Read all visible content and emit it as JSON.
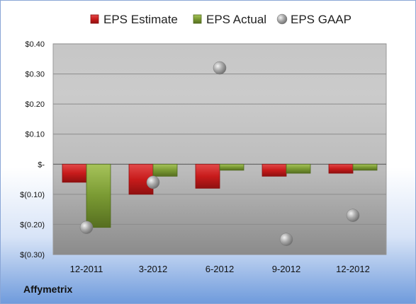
{
  "company": "Affymetrix",
  "chart_data": {
    "type": "bar",
    "categories": [
      "12-2011",
      "3-2012",
      "6-2012",
      "9-2012",
      "12-2012"
    ],
    "series": [
      {
        "name": "EPS Estimate",
        "color": "#cc1f1f",
        "values": [
          -0.06,
          -0.1,
          -0.08,
          -0.04,
          -0.03
        ]
      },
      {
        "name": "EPS Actual",
        "color": "#7a9a33",
        "values": [
          -0.21,
          -0.04,
          -0.02,
          -0.03,
          -0.02
        ]
      }
    ],
    "markers": [
      {
        "name": "EPS GAAP",
        "type": "scatter",
        "values": [
          -0.21,
          -0.06,
          0.32,
          -0.25,
          -0.17
        ]
      }
    ],
    "ylim": [
      -0.3,
      0.4
    ],
    "yticks": [
      0.4,
      0.3,
      0.2,
      0.1,
      0,
      -0.1,
      -0.2,
      -0.3
    ],
    "ytick_labels": [
      "$0.40",
      "$0.30",
      "$0.20",
      "$0.10",
      "$-",
      "$(0.10)",
      "$(0.20)",
      "$(0.30)"
    ],
    "legend_position": "top",
    "grid": true
  }
}
